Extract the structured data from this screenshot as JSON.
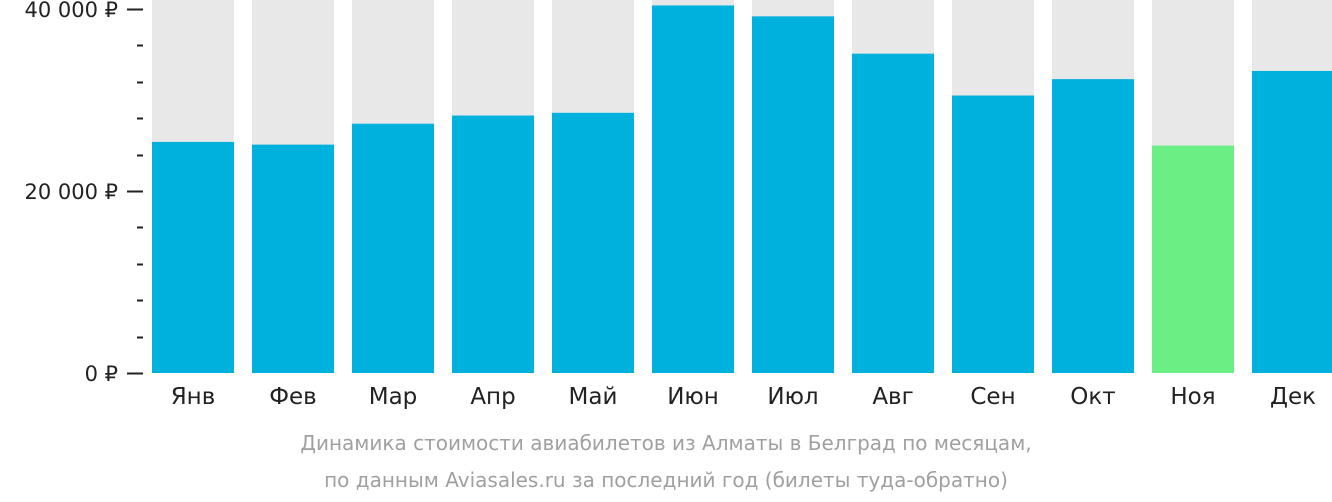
{
  "chart_data": {
    "type": "bar",
    "currency": "₽",
    "categories": [
      "Янв",
      "Фев",
      "Мар",
      "Апр",
      "Май",
      "Июн",
      "Июл",
      "Авг",
      "Сен",
      "Окт",
      "Ноя",
      "Дек"
    ],
    "values": [
      25400,
      25100,
      27400,
      28300,
      28600,
      40400,
      39200,
      35100,
      30500,
      32300,
      25000,
      33200
    ],
    "ylim": [
      0,
      41000
    ],
    "yticks": [
      {
        "value": 0,
        "label": "0 ₽"
      },
      {
        "value": 20000,
        "label": "20 000 ₽"
      },
      {
        "value": 40000,
        "label": "40 000 ₽"
      }
    ],
    "minor_tick_step": 4000,
    "highlight_index": 10,
    "colors": {
      "bar": "#00b0dd",
      "bar_highlight": "#6bef84",
      "bar_background": "#e8e8e8",
      "axis": "#222222"
    },
    "caption_lines": [
      "Динамика стоимости авиабилетов из Алматы в Белград по месяцам,",
      "по данным Aviasales.ru за последний год (билеты туда-обратно)"
    ]
  }
}
